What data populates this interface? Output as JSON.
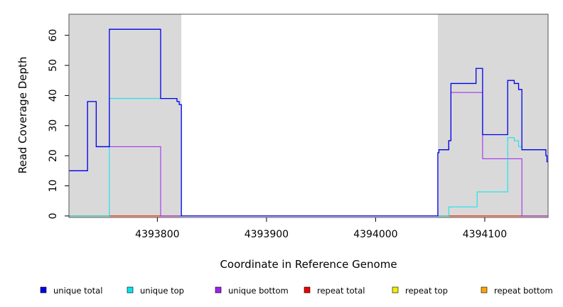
{
  "chart_data": {
    "type": "line",
    "title": "",
    "xlabel": "Coordinate in Reference Genome",
    "ylabel": "Read Coverage Depth",
    "xlim": [
      4393719,
      4394158
    ],
    "ylim": [
      -0.5,
      67
    ],
    "x_ticks": [
      4393800,
      4393900,
      4394000,
      4394100
    ],
    "x_tick_labels": [
      "4393800",
      "4393900",
      "4394000",
      "4394100"
    ],
    "y_ticks": [
      0,
      10,
      20,
      30,
      40,
      50,
      60
    ],
    "y_tick_labels": [
      "0",
      "10",
      "20",
      "30",
      "40",
      "50",
      "60"
    ],
    "shaded_regions": [
      [
        4393719,
        4393822
      ],
      [
        4394057,
        4394158
      ]
    ],
    "shade_color": "#d9d9d9",
    "legend_position": "bottom",
    "series": [
      {
        "name": "unique total",
        "color": "#0000ee",
        "points": [
          [
            4393719,
            15
          ],
          [
            4393736,
            15
          ],
          [
            4393736,
            38
          ],
          [
            4393744,
            38
          ],
          [
            4393744,
            23
          ],
          [
            4393756,
            23
          ],
          [
            4393756,
            62
          ],
          [
            4393803,
            62
          ],
          [
            4393803,
            39
          ],
          [
            4393818,
            39
          ],
          [
            4393818,
            38
          ],
          [
            4393820,
            38
          ],
          [
            4393820,
            37
          ],
          [
            4393822,
            37
          ],
          [
            4393822,
            0
          ],
          [
            4394057,
            0
          ],
          [
            4394057,
            21
          ],
          [
            4394058,
            21
          ],
          [
            4394058,
            22
          ],
          [
            4394067,
            22
          ],
          [
            4394067,
            25
          ],
          [
            4394069,
            25
          ],
          [
            4394069,
            44
          ],
          [
            4394092,
            44
          ],
          [
            4394092,
            49
          ],
          [
            4394098,
            49
          ],
          [
            4394098,
            27
          ],
          [
            4394121,
            27
          ],
          [
            4394121,
            45
          ],
          [
            4394127,
            45
          ],
          [
            4394127,
            44
          ],
          [
            4394131,
            44
          ],
          [
            4394131,
            42
          ],
          [
            4394134,
            42
          ],
          [
            4394134,
            22
          ],
          [
            4394156,
            22
          ],
          [
            4394156,
            20
          ],
          [
            4394157,
            20
          ],
          [
            4394157,
            18
          ],
          [
            4394158,
            18
          ]
        ]
      },
      {
        "name": "unique top",
        "color": "#00e5ee",
        "points": [
          [
            4393719,
            0
          ],
          [
            4393756,
            0
          ],
          [
            4393756,
            39
          ],
          [
            4393818,
            39
          ],
          [
            4393818,
            38
          ],
          [
            4393820,
            38
          ],
          [
            4393820,
            37
          ],
          [
            4393822,
            37
          ],
          [
            4393822,
            0
          ],
          [
            4394067,
            0
          ],
          [
            4394067,
            3
          ],
          [
            4394093,
            3
          ],
          [
            4394093,
            8
          ],
          [
            4394121,
            8
          ],
          [
            4394121,
            26
          ],
          [
            4394127,
            26
          ],
          [
            4394127,
            25
          ],
          [
            4394131,
            25
          ],
          [
            4394131,
            23
          ],
          [
            4394134,
            23
          ],
          [
            4394134,
            22
          ],
          [
            4394156,
            22
          ],
          [
            4394156,
            20
          ],
          [
            4394157,
            20
          ],
          [
            4394157,
            18
          ],
          [
            4394158,
            18
          ]
        ]
      },
      {
        "name": "unique bottom",
        "color": "#a020f0",
        "points": [
          [
            4393719,
            15
          ],
          [
            4393736,
            15
          ],
          [
            4393736,
            38
          ],
          [
            4393744,
            38
          ],
          [
            4393744,
            23
          ],
          [
            4393803,
            23
          ],
          [
            4393803,
            0
          ],
          [
            4394057,
            0
          ],
          [
            4394057,
            21
          ],
          [
            4394058,
            21
          ],
          [
            4394058,
            22
          ],
          [
            4394067,
            22
          ],
          [
            4394067,
            25
          ],
          [
            4394069,
            25
          ],
          [
            4394069,
            41
          ],
          [
            4394098,
            41
          ],
          [
            4394098,
            19
          ],
          [
            4394134,
            19
          ],
          [
            4394134,
            0
          ],
          [
            4394158,
            0
          ]
        ]
      },
      {
        "name": "repeat total",
        "color": "#ee0000",
        "points": [
          [
            4393719,
            0
          ],
          [
            4394158,
            0
          ]
        ]
      },
      {
        "name": "repeat top",
        "color": "#eeee00",
        "points": [
          [
            4393719,
            0
          ],
          [
            4394158,
            0
          ]
        ]
      },
      {
        "name": "repeat bottom",
        "color": "#ffa500",
        "points": [
          [
            4393719,
            0
          ],
          [
            4394158,
            0
          ]
        ]
      }
    ]
  }
}
